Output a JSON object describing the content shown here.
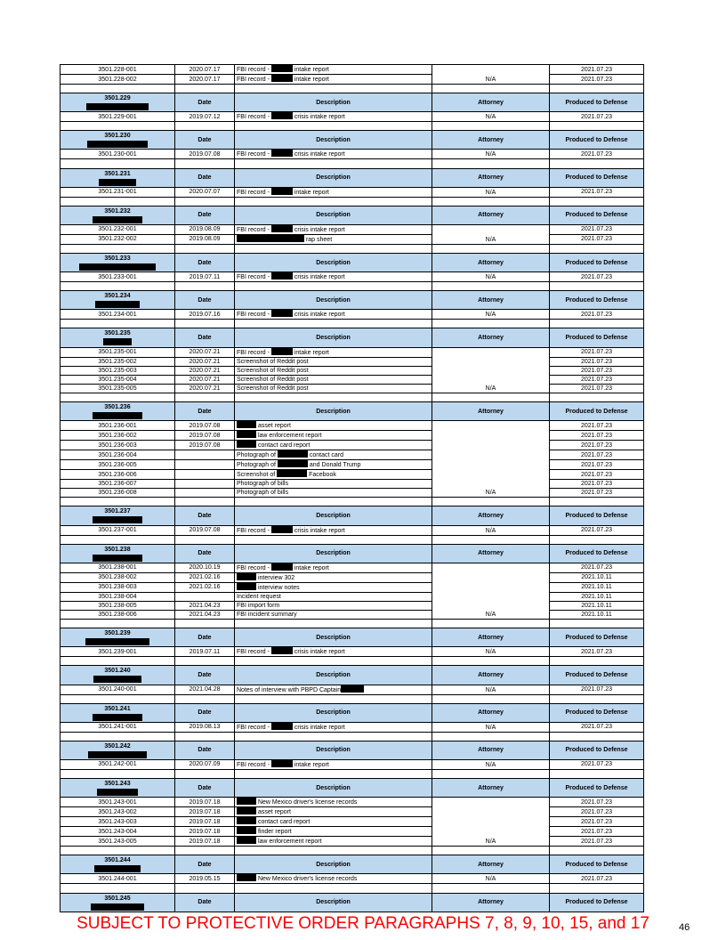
{
  "colors": {
    "header_bg": "#bdd7ee",
    "footer_text": "#ff0000",
    "redaction": "#000000"
  },
  "headers": {
    "date": "Date",
    "description": "Description",
    "attorney": "Attorney",
    "produced": "Produced to Defense"
  },
  "groups": [
    {
      "id": "",
      "no_header": true,
      "attorney": "N/A",
      "rows": [
        {
          "id": "3501.228-001",
          "date": "2020.07.17",
          "desc": [
            "FBI record - ",
            "intake report"
          ],
          "prod": "2021.07.23"
        },
        {
          "id": "3501.228-002",
          "date": "2020.07.17",
          "desc": [
            "FBI record - ",
            "intake report"
          ],
          "prod": "2021.07.23"
        }
      ]
    },
    {
      "id": "3501.229",
      "attorney": "N/A",
      "rows": [
        {
          "id": "3501.229-001",
          "date": "2019.07.12",
          "desc": [
            "FBI record - ",
            "crisis intake report"
          ],
          "prod": "2021.07.23"
        }
      ]
    },
    {
      "id": "3501.230",
      "attorney": "N/A",
      "rows": [
        {
          "id": "3501.230-001",
          "date": "2019.07.08",
          "desc": [
            "FBI record - ",
            "crisis intake report"
          ],
          "prod": "2021.07.23"
        }
      ]
    },
    {
      "id": "3501.231",
      "attorney": "N/A",
      "rows": [
        {
          "id": "3501.231-001",
          "date": "2020.07.07",
          "desc": [
            "FBI record - ",
            "intake report"
          ],
          "prod": "2021.07.23"
        }
      ]
    },
    {
      "id": "3501.232",
      "attorney": "N/A",
      "rows": [
        {
          "id": "3501.232-001",
          "date": "2019.08.09",
          "desc": [
            "FBI record - ",
            "crisis intake report"
          ],
          "prod": "2021.07.23"
        },
        {
          "id": "3501.232-002",
          "date": "2019.08.09",
          "desc": [
            "",
            " rap sheet"
          ],
          "prod": "2021.07.23"
        }
      ]
    },
    {
      "id": "3501.233",
      "attorney": "N/A",
      "rows": [
        {
          "id": "3501.233-001",
          "date": "2019.07.11",
          "desc": [
            "FBI record - ",
            "crisis intake report"
          ],
          "prod": "2021.07.23"
        }
      ]
    },
    {
      "id": "3501.234",
      "attorney": "N/A",
      "rows": [
        {
          "id": "3501.234-001",
          "date": "2019.07.16",
          "desc": [
            "FBI record - ",
            "crisis intake report"
          ],
          "prod": "2021.07.23"
        }
      ]
    },
    {
      "id": "3501.235",
      "attorney": "N/A",
      "rows": [
        {
          "id": "3501.235-001",
          "date": "2020.07.21",
          "desc": [
            "FBI record - ",
            "intake report"
          ],
          "prod": "2021.07.23"
        },
        {
          "id": "3501.235-002",
          "date": "2020.07.21",
          "desc": [
            "Screenshot of Reddit post"
          ],
          "prod": "2021.07.23"
        },
        {
          "id": "3501.235-003",
          "date": "2020.07.21",
          "desc": [
            "Screenshot of Reddit post"
          ],
          "prod": "2021.07.23"
        },
        {
          "id": "3501.235-004",
          "date": "2020.07.21",
          "desc": [
            "Screenshot of Reddit post"
          ],
          "prod": "2021.07.23"
        },
        {
          "id": "3501.235-005",
          "date": "2020.07.21",
          "desc": [
            "Screenshot of Reddit post"
          ],
          "prod": "2021.07.23"
        }
      ]
    },
    {
      "id": "3501.236",
      "attorney": "N/A",
      "rows": [
        {
          "id": "3501.236-001",
          "date": "2019.07.08",
          "desc": [
            "",
            "asset report"
          ],
          "prod": "2021.07.23"
        },
        {
          "id": "3501.236-002",
          "date": "2019.07.08",
          "desc": [
            "",
            "law enforcement report"
          ],
          "prod": "2021.07.23"
        },
        {
          "id": "3501.236-003",
          "date": "2019.07.08",
          "desc": [
            "",
            "contact card report"
          ],
          "prod": "2021.07.23"
        },
        {
          "id": "3501.236-004",
          "date": "",
          "desc": [
            "Photograph of ",
            "contact card"
          ],
          "prod": "2021.07.23"
        },
        {
          "id": "3501.236-005",
          "date": "",
          "desc": [
            "Photograph of ",
            "and Donald Trump"
          ],
          "prod": "2021.07.23"
        },
        {
          "id": "3501.236-006",
          "date": "",
          "desc": [
            "Screenshot of ",
            "Facebook"
          ],
          "prod": "2021.07.23"
        },
        {
          "id": "3501.236-007",
          "date": "",
          "desc": [
            "Photograph of bills"
          ],
          "prod": "2021.07.23"
        },
        {
          "id": "3501.236-008",
          "date": "",
          "desc": [
            "Photograph of bills"
          ],
          "prod": "2021.07.23"
        }
      ]
    },
    {
      "id": "3501.237",
      "attorney": "N/A",
      "rows": [
        {
          "id": "3501.237-001",
          "date": "2019.07.08",
          "desc": [
            "FBI record - ",
            "crisis intake report"
          ],
          "prod": "2021.07.23"
        }
      ]
    },
    {
      "id": "3501.238",
      "attorney": "N/A",
      "rows": [
        {
          "id": "3501.238-001",
          "date": "2020.10.19",
          "desc": [
            "FBI record - ",
            "intake report"
          ],
          "prod": "2021.07.23"
        },
        {
          "id": "3501.238-002",
          "date": "2021.02.16",
          "desc": [
            "",
            "interview 302"
          ],
          "prod": "2021.10.11"
        },
        {
          "id": "3501.238-003",
          "date": "2021.02.16",
          "desc": [
            "",
            "interview notes"
          ],
          "prod": "2021.10.11"
        },
        {
          "id": "3501.238-004",
          "date": "",
          "desc": [
            "Incident request"
          ],
          "prod": "2021.10.11"
        },
        {
          "id": "3501.238-005",
          "date": "2021.04.23",
          "desc": [
            "FBI import form"
          ],
          "prod": "2021.10.11"
        },
        {
          "id": "3501.238-006",
          "date": "2021.04.23",
          "desc": [
            "FBI incident summary"
          ],
          "prod": "2021.10.11"
        }
      ]
    },
    {
      "id": "3501.239",
      "attorney": "N/A",
      "rows": [
        {
          "id": "3501.239-001",
          "date": "2019.07.11",
          "desc": [
            "FBI record - ",
            "crisis intake report"
          ],
          "prod": "2021.07.23"
        }
      ]
    },
    {
      "id": "3501.240",
      "attorney": "N/A",
      "rows": [
        {
          "id": "3501.240-001",
          "date": "2021.04.28",
          "desc": [
            "Notes of interview with PBPD Captain",
            ""
          ],
          "prod": "2021.07.23"
        }
      ]
    },
    {
      "id": "3501.241",
      "attorney": "N/A",
      "rows": [
        {
          "id": "3501.241-001",
          "date": "2019.08.13",
          "desc": [
            "FBI record - ",
            "crisis intake report"
          ],
          "prod": "2021.07.23"
        }
      ]
    },
    {
      "id": "3501.242",
      "attorney": "N/A",
      "rows": [
        {
          "id": "3501.242-001",
          "date": "2020.07.09",
          "desc": [
            "FBI record - ",
            "intake report"
          ],
          "prod": "2021.07.23"
        }
      ]
    },
    {
      "id": "3501.243",
      "attorney": "N/A",
      "rows": [
        {
          "id": "3501.243-001",
          "date": "2019.07.18",
          "desc": [
            "",
            "New Mexico driver's license records"
          ],
          "prod": "2021.07.23"
        },
        {
          "id": "3501.243-002",
          "date": "2019.07.18",
          "desc": [
            "",
            "asset report"
          ],
          "prod": "2021.07.23"
        },
        {
          "id": "3501.243-003",
          "date": "2019.07.18",
          "desc": [
            "",
            "contact card report"
          ],
          "prod": "2021.07.23"
        },
        {
          "id": "3501.243-004",
          "date": "2019.07.18",
          "desc": [
            "",
            "finder report"
          ],
          "prod": "2021.07.23"
        },
        {
          "id": "3501.243-005",
          "date": "2019.07.18",
          "desc": [
            "",
            "law enforcement report"
          ],
          "prod": "2021.07.23"
        }
      ]
    },
    {
      "id": "3501.244",
      "attorney": "N/A",
      "rows": [
        {
          "id": "3501.244-001",
          "date": "2019.05.15",
          "desc": [
            "",
            "New Mexico driver's license records"
          ],
          "prod": "2021.07.23"
        }
      ]
    },
    {
      "id": "3501.245",
      "attorney": "",
      "header_only": true,
      "rows": []
    }
  ],
  "footer": {
    "notice": "SUBJECT TO PROTECTIVE ORDER PARAGRAPHS 7, 8, 9, 10, 15, and 17",
    "page_number": "46"
  }
}
